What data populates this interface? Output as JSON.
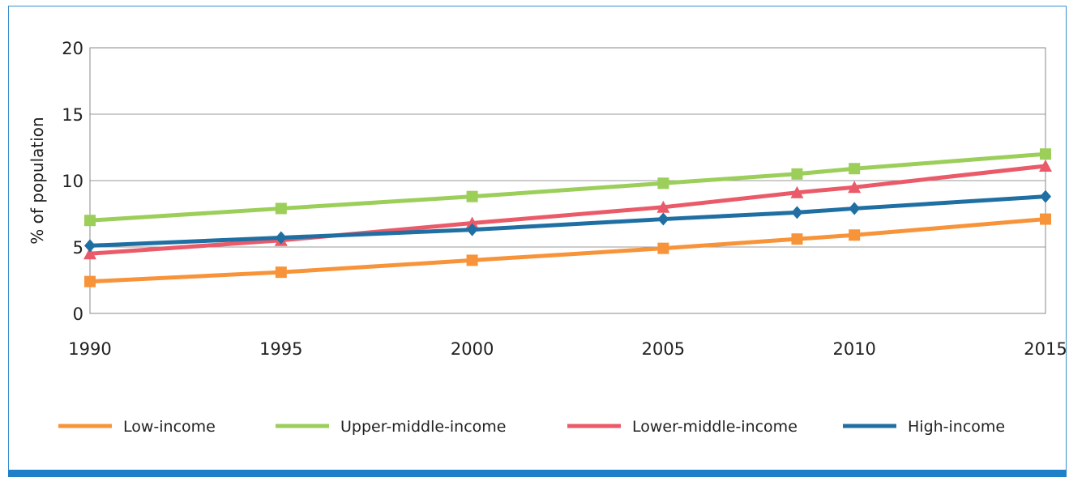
{
  "chart_data": {
    "type": "line",
    "title": "",
    "xlabel": "",
    "ylabel": "% of population",
    "x": [
      1990,
      1995,
      2000,
      2005,
      2008.5,
      2010,
      2015
    ],
    "x_ticks": [
      "1990",
      "1995",
      "2000",
      "2005",
      "2010",
      "2015"
    ],
    "y_ticks": [
      "0",
      "5",
      "10",
      "15",
      "20"
    ],
    "xlim": [
      1990,
      2015
    ],
    "ylim": [
      0,
      20
    ],
    "grid": "horizontal",
    "legend_position": "bottom",
    "series": [
      {
        "name": "Low-income",
        "color": "#f7943a",
        "marker": "square",
        "values": [
          2.4,
          3.1,
          4.0,
          4.9,
          5.6,
          5.9,
          7.1
        ]
      },
      {
        "name": "Upper-middle-income",
        "color": "#9cce5a",
        "marker": "square",
        "values": [
          7.0,
          7.9,
          8.8,
          9.8,
          10.5,
          10.9,
          12.0
        ]
      },
      {
        "name": "Lower-middle-income",
        "color": "#ea5a69",
        "marker": "triangle",
        "values": [
          4.5,
          5.5,
          6.8,
          8.0,
          9.1,
          9.5,
          11.1
        ]
      },
      {
        "name": "High-income",
        "color": "#1f6fa3",
        "marker": "diamond",
        "values": [
          5.1,
          5.7,
          6.3,
          7.1,
          7.6,
          7.9,
          8.8
        ]
      }
    ]
  }
}
